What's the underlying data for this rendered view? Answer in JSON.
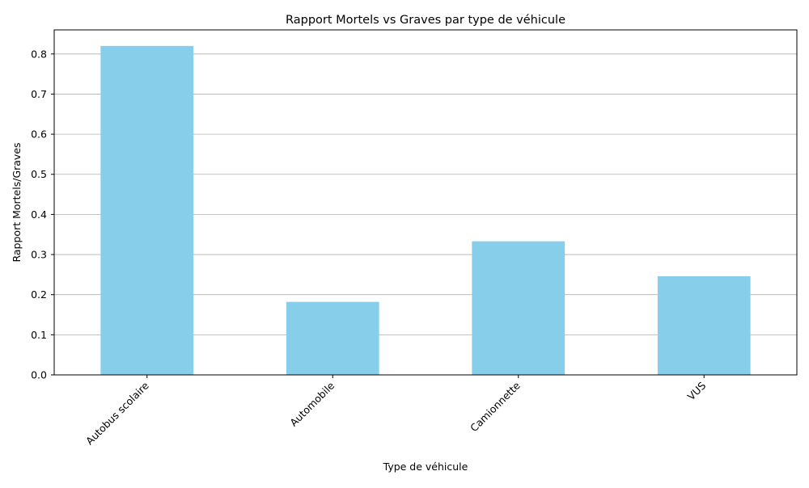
{
  "chart_data": {
    "type": "bar",
    "title": "Rapport Mortels vs Graves par type de véhicule",
    "xlabel": "Type de véhicule",
    "ylabel": "Rapport Mortels/Graves",
    "categories": [
      "Autobus scolaire",
      "Automobile",
      "Camionnette",
      "VUS"
    ],
    "values": [
      0.82,
      0.182,
      0.333,
      0.246
    ],
    "ylim": [
      0,
      0.86
    ],
    "yticks": [
      "0.0",
      "0.1",
      "0.2",
      "0.3",
      "0.4",
      "0.5",
      "0.6",
      "0.7",
      "0.8"
    ],
    "grid": "y",
    "legend": "none",
    "colors": {
      "bar": "#87ceeb",
      "grid": "#b0b0b0",
      "axis": "#000000"
    }
  }
}
